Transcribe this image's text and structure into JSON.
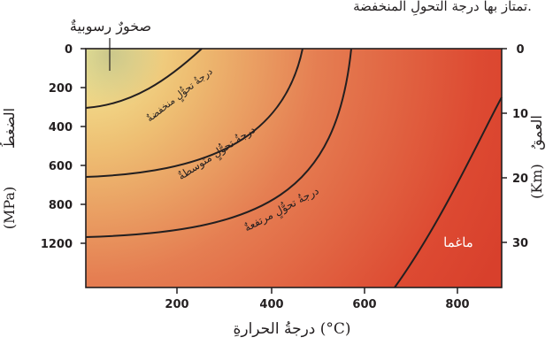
{
  "caption_fragment": "تمتاز بها درجة التحولِ المنخفضة.",
  "callout": "صخورٌ رسوبيةٌ",
  "zones": {
    "low": "درجةُ تحوُّلٍ منخفضةٌ",
    "medium": "درجةُ تحوُّلٍ متوسطةٌ",
    "high": "درجةُ تحوُّلٍ مرتفعةٌ",
    "magma": "ماغما"
  },
  "axes": {
    "x_title": "درجةُ الحرارةِ (°C)",
    "left_title_word": "الضغطُ",
    "left_title_unit": "(MPa)",
    "right_title_word": "العمقُ",
    "right_title_unit": "(Km)",
    "x_ticks": [
      "200",
      "400",
      "600",
      "800"
    ],
    "left_ticks": [
      "0",
      "200",
      "400",
      "600",
      "800",
      "1200"
    ],
    "right_ticks": [
      "0",
      "10",
      "20",
      "30"
    ]
  },
  "colors": {
    "sediment_glow": "#f3ee9a",
    "low_zone": "#e9c77a",
    "high_zone": "#dd4a32",
    "boundary_line": "#231f20"
  }
}
